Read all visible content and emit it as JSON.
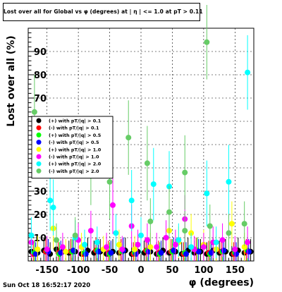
{
  "title": "Lost over all for Global vs φ (degrees) at | η | <= 1.0 at pT > 0.11",
  "footer_timestamp": "Sun Oct 18 16:52:17 2020",
  "chart_data": {
    "type": "scatter",
    "xlabel": "φ (degrees)",
    "ylabel": "Lost over all (%)",
    "xlim": [
      -180,
      180
    ],
    "ylim": [
      0,
      100
    ],
    "x_ticks": [
      -150,
      -100,
      -50,
      0,
      50,
      100,
      150
    ],
    "y_ticks": [
      10,
      20,
      30,
      40,
      50,
      60,
      70,
      80,
      90
    ],
    "grid": true,
    "legend_position": "middle-left",
    "series": [
      {
        "name": "(+) with pT/|q| > 0.1",
        "color": "#000000",
        "points": [
          [
            -175,
            4
          ],
          [
            -165,
            3.5
          ],
          [
            -155,
            4.5
          ],
          [
            -145,
            3
          ],
          [
            -135,
            5
          ],
          [
            -125,
            4
          ],
          [
            -115,
            3.5
          ],
          [
            -105,
            4
          ],
          [
            -95,
            3
          ],
          [
            -85,
            4.5
          ],
          [
            -75,
            3.5
          ],
          [
            -65,
            4
          ],
          [
            -55,
            3
          ],
          [
            -45,
            4
          ],
          [
            -35,
            3.5
          ],
          [
            -25,
            4.5
          ],
          [
            -15,
            3
          ],
          [
            -5,
            4
          ],
          [
            5,
            3.5
          ],
          [
            15,
            4
          ],
          [
            25,
            3
          ],
          [
            35,
            4.5
          ],
          [
            45,
            3.5
          ],
          [
            55,
            4
          ],
          [
            65,
            3
          ],
          [
            75,
            4.5
          ],
          [
            85,
            3.5
          ],
          [
            95,
            4
          ],
          [
            105,
            3
          ],
          [
            115,
            4.5
          ],
          [
            125,
            3.5
          ],
          [
            135,
            4
          ],
          [
            145,
            3
          ],
          [
            155,
            4.5
          ],
          [
            165,
            3.5
          ],
          [
            175,
            4
          ]
        ]
      },
      {
        "name": "(-) with pT/|q| > 0.1",
        "color": "#ff0000",
        "points": [
          [
            -172,
            3
          ],
          [
            -152,
            4
          ],
          [
            -132,
            3.5
          ],
          [
            -112,
            4
          ],
          [
            -92,
            3
          ],
          [
            -72,
            4.5
          ],
          [
            -52,
            3.5
          ],
          [
            -32,
            4
          ],
          [
            -12,
            3
          ],
          [
            8,
            4.5
          ],
          [
            28,
            3.5
          ],
          [
            48,
            4
          ],
          [
            68,
            3
          ],
          [
            88,
            4.5
          ],
          [
            108,
            3.5
          ],
          [
            128,
            4
          ],
          [
            148,
            3
          ],
          [
            168,
            4
          ]
        ]
      },
      {
        "name": "(+) with pT/|q| > 0.5",
        "color": "#00ff00",
        "points": [
          [
            -170,
            3.5
          ],
          [
            -150,
            4.5
          ],
          [
            -130,
            3
          ],
          [
            -110,
            4
          ],
          [
            -90,
            3.5
          ],
          [
            -70,
            4.5
          ],
          [
            -50,
            3
          ],
          [
            -30,
            4
          ],
          [
            -10,
            3.5
          ],
          [
            10,
            4.5
          ],
          [
            30,
            3
          ],
          [
            50,
            4
          ],
          [
            70,
            3.5
          ],
          [
            90,
            4.5
          ],
          [
            110,
            3
          ],
          [
            130,
            4
          ],
          [
            150,
            3.5
          ],
          [
            170,
            4.5
          ]
        ]
      },
      {
        "name": "(-) with pT/|q| > 0.5",
        "color": "#0000ff",
        "points": [
          [
            -168,
            3
          ],
          [
            -148,
            4
          ],
          [
            -128,
            3.5
          ],
          [
            -108,
            4.5
          ],
          [
            -88,
            3
          ],
          [
            -68,
            4
          ],
          [
            -48,
            3.5
          ],
          [
            -28,
            4.5
          ],
          [
            -8,
            3
          ],
          [
            12,
            4
          ],
          [
            32,
            3.5
          ],
          [
            52,
            4.5
          ],
          [
            72,
            3
          ],
          [
            92,
            4
          ],
          [
            112,
            3.5
          ],
          [
            132,
            4.5
          ],
          [
            152,
            3
          ],
          [
            172,
            4
          ]
        ]
      },
      {
        "name": "(+) with pT/|q| > 1.0",
        "color": "#ffff00",
        "points": [
          [
            -165,
            5
          ],
          [
            -140,
            14
          ],
          [
            -120,
            4
          ],
          [
            -95,
            6
          ],
          [
            -60,
            5
          ],
          [
            -35,
            7
          ],
          [
            -10,
            5
          ],
          [
            15,
            6
          ],
          [
            45,
            13
          ],
          [
            60,
            8
          ],
          [
            80,
            12
          ],
          [
            100,
            7
          ],
          [
            120,
            5
          ],
          [
            145,
            16
          ],
          [
            165,
            6
          ]
        ]
      },
      {
        "name": "(-) with pT/|q| > 1.0",
        "color": "#ff00ff",
        "points": [
          [
            -175,
            8
          ],
          [
            -150,
            5
          ],
          [
            -125,
            6
          ],
          [
            -100,
            9
          ],
          [
            -80,
            13
          ],
          [
            -55,
            6
          ],
          [
            -45,
            24
          ],
          [
            -30,
            5
          ],
          [
            -15,
            15
          ],
          [
            -5,
            7
          ],
          [
            10,
            9
          ],
          [
            25,
            6
          ],
          [
            40,
            10
          ],
          [
            55,
            7
          ],
          [
            70,
            18
          ],
          [
            85,
            5
          ],
          [
            100,
            6
          ],
          [
            115,
            8
          ],
          [
            130,
            9
          ],
          [
            150,
            5
          ],
          [
            170,
            8
          ]
        ]
      },
      {
        "name": "(+) with pT/|q| > 2.0",
        "color": "#00ffff",
        "points": [
          [
            -175,
            11
          ],
          [
            -145,
            26
          ],
          [
            -140,
            23
          ],
          [
            -105,
            10
          ],
          [
            -90,
            7
          ],
          [
            -70,
            8
          ],
          [
            -40,
            12
          ],
          [
            -15,
            26
          ],
          [
            0,
            11
          ],
          [
            20,
            33
          ],
          [
            45,
            32
          ],
          [
            60,
            9
          ],
          [
            80,
            6
          ],
          [
            105,
            29
          ],
          [
            120,
            8
          ],
          [
            140,
            34
          ],
          [
            170,
            81
          ]
        ]
      },
      {
        "name": "(-) with pT/|q| > 2.0",
        "color": "#66cc66",
        "points": [
          [
            -170,
            64
          ],
          [
            -135,
            9
          ],
          [
            -105,
            11
          ],
          [
            -80,
            40
          ],
          [
            -50,
            34
          ],
          [
            -20,
            53
          ],
          [
            10,
            42
          ],
          [
            15,
            17
          ],
          [
            45,
            21
          ],
          [
            70,
            38
          ],
          [
            70,
            13
          ],
          [
            105,
            94
          ],
          [
            110,
            15
          ],
          [
            140,
            12
          ],
          [
            165,
            16
          ]
        ]
      }
    ]
  }
}
